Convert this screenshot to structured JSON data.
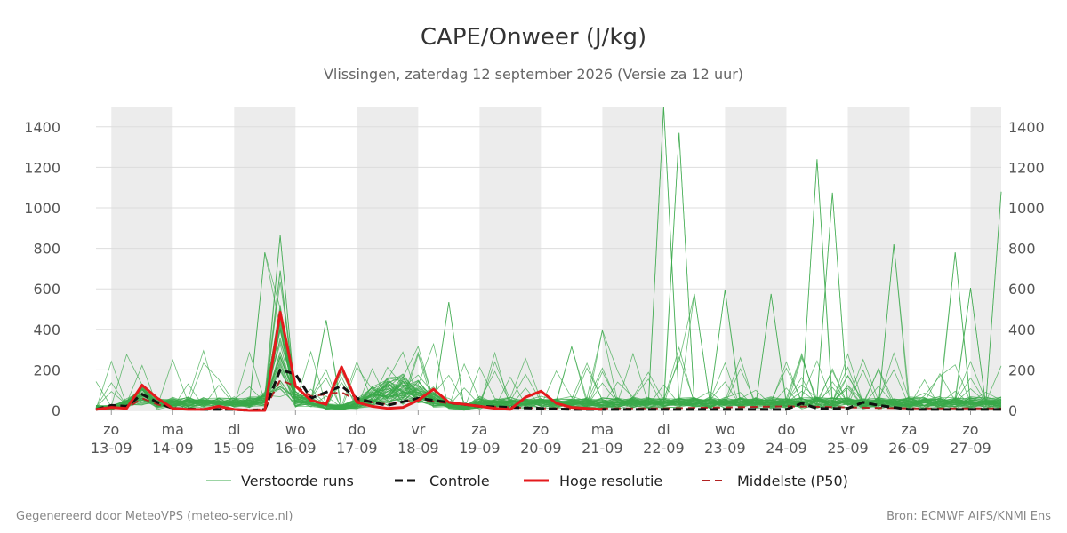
{
  "chart_data": {
    "type": "line",
    "title": "CAPE/Onweer (J/kg)",
    "subtitle": "Vlissingen, zaterdag 12 september 2026 (Versie za 12 uur)",
    "ylim": [
      0,
      1500
    ],
    "yticks": [
      0,
      200,
      400,
      600,
      800,
      1000,
      1200,
      1400
    ],
    "xlim": [
      -0.25,
      14.5
    ],
    "x_categories": [
      {
        "day": "zo",
        "date": "13-09"
      },
      {
        "day": "ma",
        "date": "14-09"
      },
      {
        "day": "di",
        "date": "15-09"
      },
      {
        "day": "wo",
        "date": "16-09"
      },
      {
        "day": "do",
        "date": "17-09"
      },
      {
        "day": "vr",
        "date": "18-09"
      },
      {
        "day": "za",
        "date": "19-09"
      },
      {
        "day": "zo",
        "date": "20-09"
      },
      {
        "day": "ma",
        "date": "21-09"
      },
      {
        "day": "di",
        "date": "22-09"
      },
      {
        "day": "wo",
        "date": "23-09"
      },
      {
        "day": "do",
        "date": "24-09"
      },
      {
        "day": "vr",
        "date": "25-09"
      },
      {
        "day": "za",
        "date": "26-09"
      },
      {
        "day": "zo",
        "date": "27-09"
      }
    ],
    "shaded_days": [
      0,
      2,
      4,
      6,
      8,
      10,
      12,
      14
    ],
    "grid": true,
    "legend_position": "bottom",
    "colors": {
      "ensemble": "#3aa84a",
      "control": "#111111",
      "hires": "#e41a1c",
      "p50": "#b22222",
      "shade": "#ececec",
      "grid": "#dddddd"
    },
    "legend": [
      {
        "key": "ensemble",
        "label": "Verstoorde runs"
      },
      {
        "key": "control",
        "label": "Controle"
      },
      {
        "key": "hires",
        "label": "Hoge resolutie"
      },
      {
        "key": "p50",
        "label": "Middelste (P50)"
      }
    ],
    "series": [
      {
        "name": "Hoge resolutie",
        "key": "hires",
        "x": [
          -0.25,
          0.0,
          0.25,
          0.5,
          0.75,
          1.0,
          1.25,
          1.5,
          1.75,
          2.0,
          2.25,
          2.5,
          2.75,
          3.0,
          3.25,
          3.5,
          3.75,
          4.0,
          4.25,
          4.5,
          4.75,
          5.0,
          5.25,
          5.5,
          5.75,
          6.0,
          6.25,
          6.5,
          6.75,
          7.0,
          7.25,
          7.5,
          7.75,
          8.0
        ],
        "y": [
          5,
          15,
          10,
          125,
          60,
          10,
          5,
          5,
          20,
          5,
          0,
          0,
          485,
          120,
          50,
          30,
          215,
          40,
          20,
          10,
          15,
          50,
          105,
          40,
          30,
          20,
          10,
          5,
          65,
          95,
          35,
          15,
          10,
          5
        ]
      },
      {
        "name": "Controle",
        "key": "control",
        "x": [
          -0.25,
          0.0,
          0.25,
          0.5,
          0.75,
          1.0,
          1.5,
          2.0,
          2.25,
          2.5,
          2.75,
          3.0,
          3.25,
          3.5,
          3.75,
          4.0,
          4.25,
          4.5,
          5.0,
          5.5,
          6.0,
          6.5,
          7.0,
          7.5,
          8.0,
          8.5,
          9.0,
          9.5,
          10.0,
          10.5,
          11.0,
          11.25,
          11.5,
          12.0,
          12.25,
          12.5,
          13.0,
          13.5,
          14.0,
          14.5
        ],
        "y": [
          5,
          25,
          20,
          80,
          40,
          10,
          5,
          5,
          0,
          5,
          200,
          180,
          60,
          90,
          120,
          60,
          40,
          25,
          60,
          40,
          20,
          15,
          10,
          5,
          5,
          5,
          5,
          5,
          5,
          5,
          5,
          35,
          10,
          10,
          40,
          25,
          5,
          5,
          5,
          5
        ]
      },
      {
        "name": "Middelste (P50)",
        "key": "p50",
        "x": [
          -0.25,
          0.0,
          0.25,
          0.5,
          0.75,
          1.0,
          1.5,
          2.0,
          2.5,
          2.75,
          3.0,
          3.25,
          3.5,
          3.75,
          4.0,
          4.5,
          5.0,
          5.5,
          6.0,
          6.5,
          7.0,
          8.0,
          9.0,
          10.0,
          11.0,
          12.0,
          13.0,
          14.0,
          14.5
        ],
        "y": [
          5,
          15,
          10,
          60,
          30,
          10,
          5,
          5,
          5,
          150,
          120,
          70,
          80,
          90,
          50,
          30,
          55,
          35,
          20,
          15,
          10,
          10,
          10,
          15,
          20,
          15,
          10,
          10,
          10
        ]
      }
    ],
    "ensemble_peaks": [
      {
        "x": 2.5,
        "y": 780
      },
      {
        "x": 2.75,
        "y": 865
      },
      {
        "x": 2.75,
        "y": 690
      },
      {
        "x": 3.5,
        "y": 445
      },
      {
        "x": 5.5,
        "y": 535
      },
      {
        "x": 7.5,
        "y": 315
      },
      {
        "x": 8.0,
        "y": 395
      },
      {
        "x": 9.0,
        "y": 1500
      },
      {
        "x": 9.25,
        "y": 1370
      },
      {
        "x": 9.5,
        "y": 575
      },
      {
        "x": 10.0,
        "y": 595
      },
      {
        "x": 10.75,
        "y": 575
      },
      {
        "x": 11.5,
        "y": 1240
      },
      {
        "x": 11.75,
        "y": 1075
      },
      {
        "x": 12.75,
        "y": 820
      },
      {
        "x": 13.75,
        "y": 780
      },
      {
        "x": 14.0,
        "y": 605
      },
      {
        "x": 14.5,
        "y": 1080
      }
    ],
    "ensemble_member_count": 50
  },
  "footer": {
    "left": "Gegenereerd door MeteoVPS (meteo-service.nl)",
    "right": "Bron: ECMWF AIFS/KNMI Ens"
  }
}
